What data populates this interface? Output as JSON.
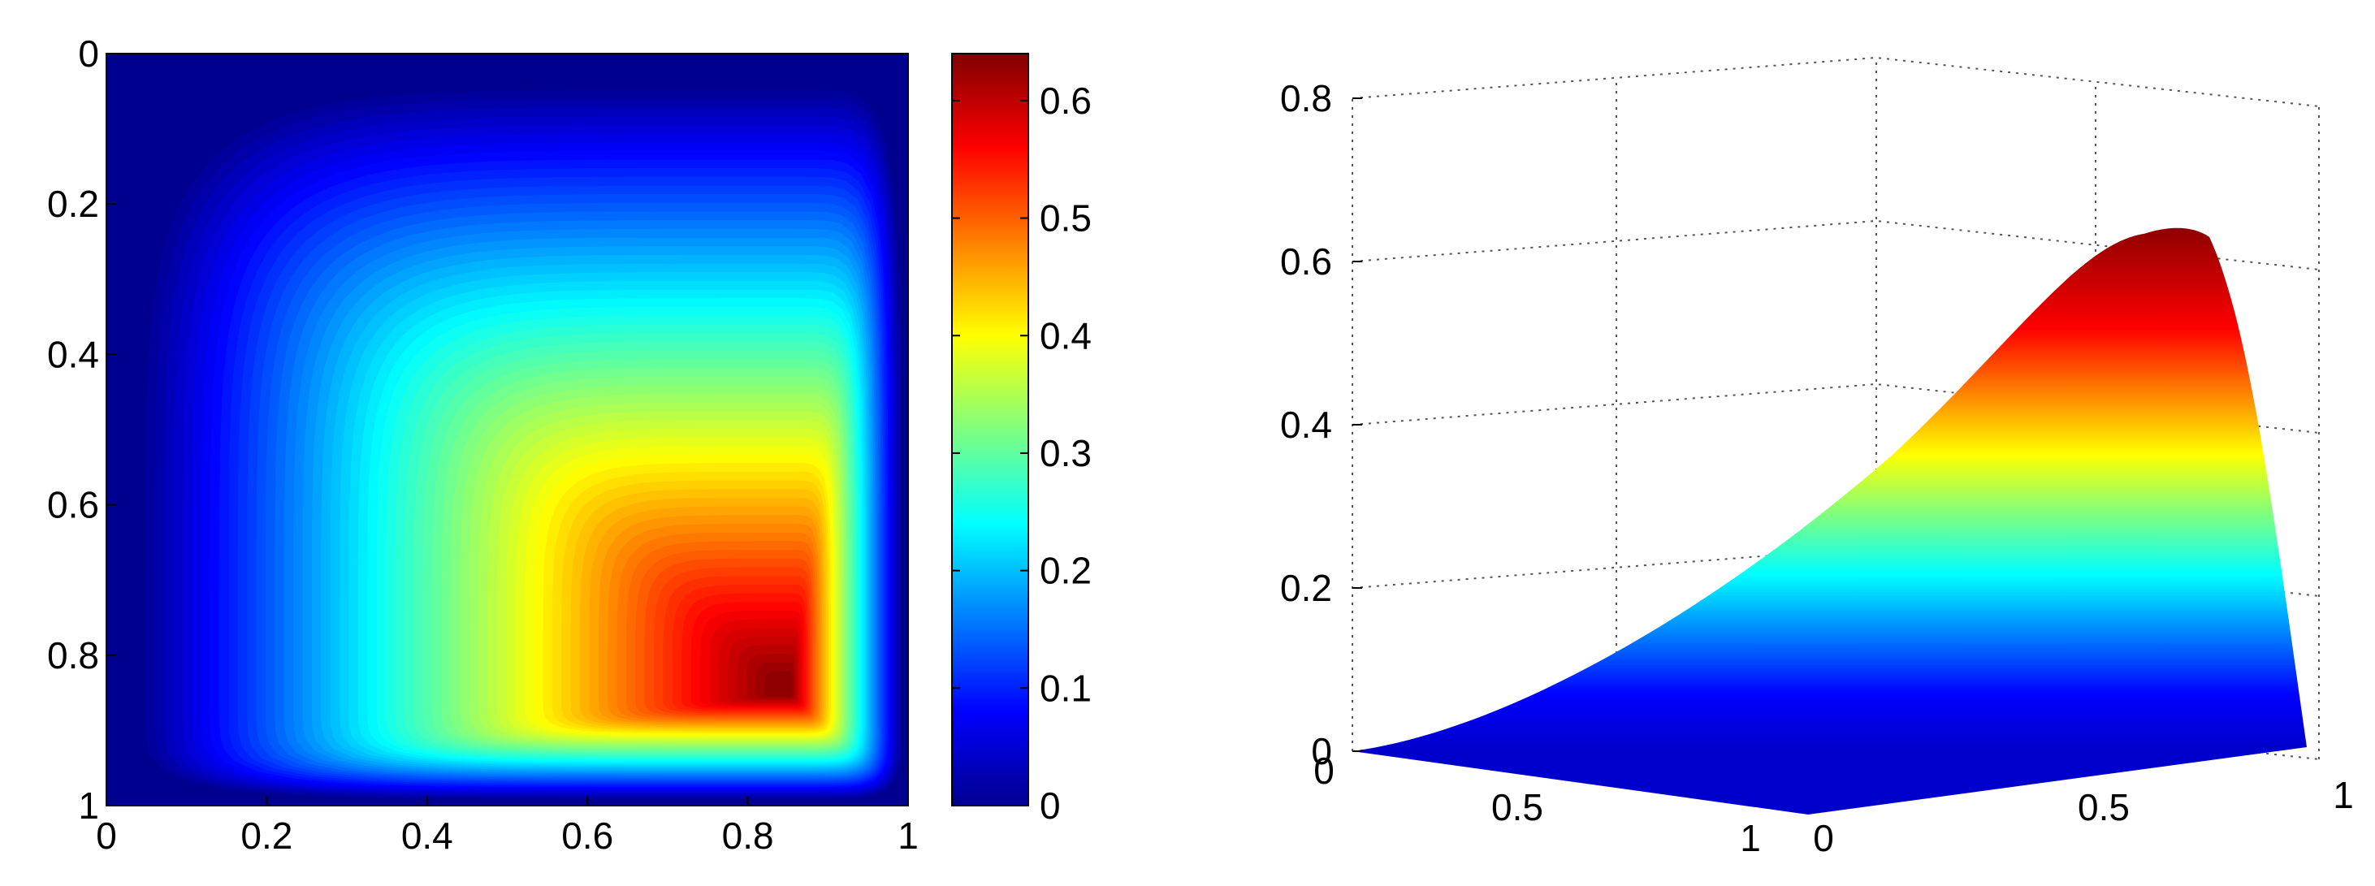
{
  "chart_data": [
    {
      "type": "heatmap",
      "title": "",
      "xlabel": "",
      "ylabel": "",
      "xlim": [
        0,
        1
      ],
      "ylim": [
        0,
        1
      ],
      "y_reversed": true,
      "x_ticks": [
        "0",
        "0.2",
        "0.4",
        "0.6",
        "0.8",
        "1"
      ],
      "y_ticks": [
        "0",
        "0.2",
        "0.4",
        "0.6",
        "0.8",
        "1"
      ],
      "colormap": "jet",
      "value_range": [
        0,
        0.64
      ],
      "peak": {
        "x": 0.85,
        "y": 0.85,
        "value": 0.64
      },
      "colorbar": {
        "range": [
          0,
          0.64
        ],
        "ticks": [
          "0",
          "0.1",
          "0.2",
          "0.3",
          "0.4",
          "0.5",
          "0.6"
        ]
      }
    },
    {
      "type": "surface",
      "title": "",
      "xlabel": "",
      "ylabel": "",
      "zlabel": "",
      "zlim": [
        0,
        0.8
      ],
      "z_ticks": [
        "0",
        "0.2",
        "0.4",
        "0.6",
        "0.8"
      ],
      "left_axis_ticks": [
        "0",
        "0.5",
        "1"
      ],
      "right_axis_ticks": [
        "0",
        "0.5",
        "1"
      ],
      "grid": true,
      "colormap": "jet",
      "peak_value": 0.64
    }
  ]
}
